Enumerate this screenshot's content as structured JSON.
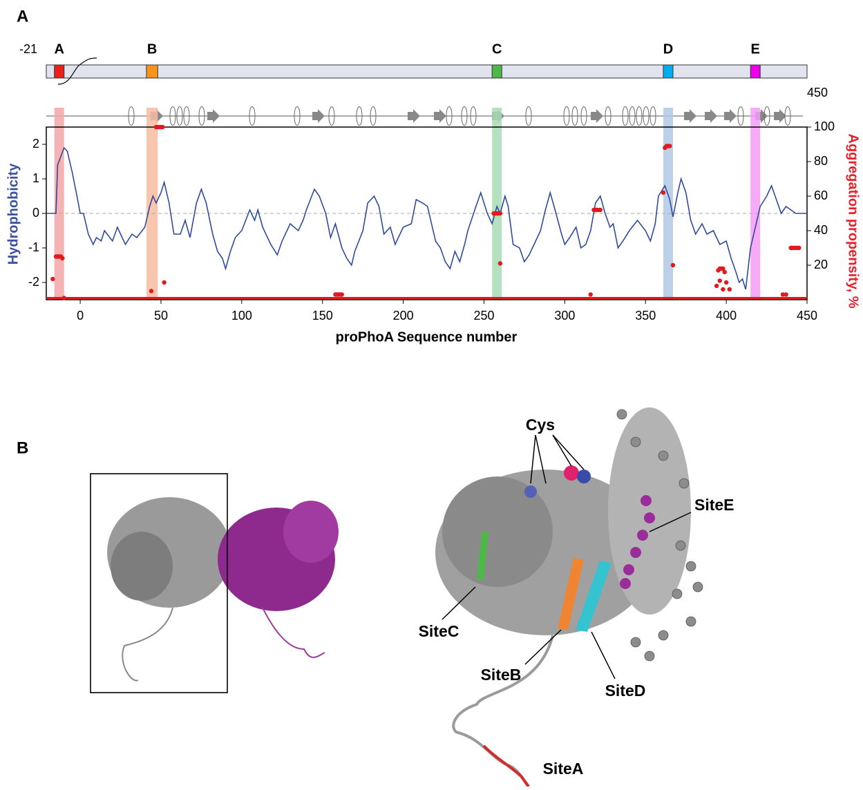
{
  "panel_labels": [
    "A",
    "B"
  ],
  "chart_data": {
    "type": "line",
    "x_label": "proPhoA Sequence number",
    "y_label": "Hydrophobicity",
    "y2_label": "Aggregation propensity, %",
    "xlim": [
      -21,
      450
    ],
    "xticks": [
      0,
      50,
      100,
      150,
      200,
      250,
      300,
      350,
      400,
      450
    ],
    "ylim": [
      -2.5,
      2.5
    ],
    "yticks": [
      -2,
      -1,
      0,
      1,
      2
    ],
    "y2lim": [
      0,
      100
    ],
    "y2ticks": [
      20,
      40,
      60,
      80,
      100
    ],
    "hline": 0,
    "sites": [
      {
        "label": "A",
        "start": -16,
        "end": -10,
        "color": "#e8211f",
        "band_color": "#f4a6a6"
      },
      {
        "label": "B",
        "start": 41,
        "end": 48,
        "color": "#f7941d",
        "band_color": "#f7bca0"
      },
      {
        "label": "C",
        "start": 255,
        "end": 261,
        "color": "#4db848",
        "band_color": "#a9dcb5"
      },
      {
        "label": "D",
        "start": 361,
        "end": 367,
        "color": "#00aeef",
        "band_color": "#b0c8e4"
      },
      {
        "label": "E",
        "start": 415,
        "end": 421,
        "color": "#ec00ec",
        "band_color": "#f59cf5"
      }
    ],
    "series": [
      {
        "color": "#2e4a9b",
        "mode": "line",
        "x": [
          -21,
          -15,
          -14,
          -10,
          -8,
          -5,
          -2,
          0,
          2,
          5,
          8,
          10,
          13,
          15,
          20,
          23,
          25,
          28,
          32,
          35,
          40,
          43,
          45,
          47,
          50,
          52,
          55,
          58,
          62,
          65,
          68,
          72,
          75,
          78,
          82,
          85,
          88,
          90,
          93,
          96,
          100,
          105,
          108,
          110,
          113,
          118,
          122,
          125,
          130,
          135,
          138,
          140,
          145,
          148,
          152,
          155,
          158,
          162,
          165,
          168,
          170,
          175,
          178,
          182,
          185,
          188,
          192,
          195,
          200,
          205,
          208,
          212,
          215,
          218,
          220,
          223,
          226,
          229,
          232,
          235,
          238,
          240,
          245,
          248,
          252,
          255,
          258,
          260,
          263,
          265,
          268,
          272,
          275,
          278,
          282,
          285,
          288,
          291,
          294,
          298,
          300,
          303,
          307,
          310,
          313,
          316,
          319,
          322,
          325,
          328,
          330,
          333,
          336,
          340,
          345,
          350,
          353,
          356,
          358,
          362,
          365,
          367,
          370,
          372,
          375,
          378,
          381,
          385,
          388,
          392,
          396,
          400,
          403,
          406,
          408,
          410,
          412,
          415,
          418,
          421,
          425,
          428,
          431,
          434,
          437,
          440,
          443,
          450
        ],
        "values": [
          0,
          0,
          1.4,
          1.9,
          1.8,
          1.2,
          0.5,
          0,
          0,
          -0.6,
          -0.9,
          -0.7,
          -0.8,
          -0.5,
          -0.8,
          -0.4,
          -0.6,
          -0.9,
          -0.6,
          -0.7,
          -0.4,
          0.2,
          0.5,
          0.3,
          0.6,
          0.9,
          0.3,
          -0.6,
          -0.6,
          -0.2,
          -0.7,
          0.3,
          0.7,
          0.3,
          -0.6,
          -1.1,
          -1.3,
          -1.6,
          -1.1,
          -0.7,
          -0.5,
          0.1,
          -0.2,
          0.1,
          -0.4,
          -0.9,
          -1.2,
          -0.8,
          -0.3,
          -0.5,
          -0.2,
          0.1,
          0.7,
          0.5,
          0,
          -0.7,
          -0.3,
          -1.0,
          -1.3,
          -1.5,
          -1.1,
          -0.5,
          0.3,
          0.5,
          0.2,
          -0.6,
          -0.4,
          -0.9,
          -0.4,
          -0.3,
          0.4,
          0.3,
          0.2,
          -0.4,
          -0.8,
          -1.0,
          -1.4,
          -1.6,
          -1.1,
          -1.4,
          -0.9,
          -0.5,
          0.2,
          0.6,
          0,
          -0.3,
          0.2,
          0,
          0.5,
          0.2,
          -0.9,
          -1.0,
          -1.4,
          -1.2,
          -0.8,
          -0.5,
          0.1,
          0.6,
          0.1,
          -0.6,
          -0.9,
          -0.7,
          -0.4,
          -1.0,
          -0.9,
          -0.5,
          0.3,
          0.5,
          0,
          -0.4,
          -0.3,
          -1.0,
          -0.8,
          -0.5,
          -0.2,
          -0.5,
          -0.8,
          -0.3,
          0.5,
          0.8,
          0.4,
          -0.1,
          0.6,
          1.0,
          0.6,
          -0.2,
          -0.6,
          -0.3,
          -0.6,
          -0.5,
          -0.9,
          -0.8,
          -1.3,
          -1.7,
          -2.0,
          -1.9,
          -2.2,
          -1.0,
          -0.4,
          0.2,
          0.5,
          0.8,
          0.4,
          0,
          0.2,
          0.1,
          0,
          0
        ]
      },
      {
        "color": "#e31a1c",
        "mode": "line",
        "axis": "y2",
        "x": [
          -21,
          450
        ],
        "values": [
          1,
          1
        ]
      },
      {
        "color": "#e31a1c",
        "mode": "markers",
        "axis": "y2",
        "x": [
          -17,
          -15,
          -14,
          -13,
          -12,
          -11,
          -10,
          44,
          47,
          48,
          49,
          50,
          51,
          52,
          158,
          159,
          160,
          161,
          162,
          256,
          257,
          258,
          259,
          260,
          260,
          316,
          318,
          319,
          320,
          321,
          322,
          361,
          362,
          363,
          364,
          365,
          367,
          394,
          395,
          396,
          396,
          397,
          398,
          398,
          399,
          400,
          402,
          435,
          437,
          440,
          441,
          442,
          443,
          444,
          445
        ],
        "values": [
          12,
          25,
          25,
          25,
          25,
          24,
          1,
          5,
          100,
          100,
          100,
          100,
          100,
          10,
          3,
          3,
          3,
          3,
          3,
          50,
          50,
          50,
          50,
          50,
          21,
          3,
          52,
          52,
          52,
          52,
          52,
          62,
          88,
          89,
          89,
          89,
          20,
          8,
          17,
          18,
          11,
          18,
          18,
          6,
          16,
          10,
          6,
          3,
          3,
          30,
          30,
          30,
          30,
          30,
          30
        ]
      }
    ]
  },
  "structure_labels": [
    "Cys",
    "SiteE",
    "SiteC",
    "SiteB",
    "SiteD",
    "SiteA"
  ]
}
